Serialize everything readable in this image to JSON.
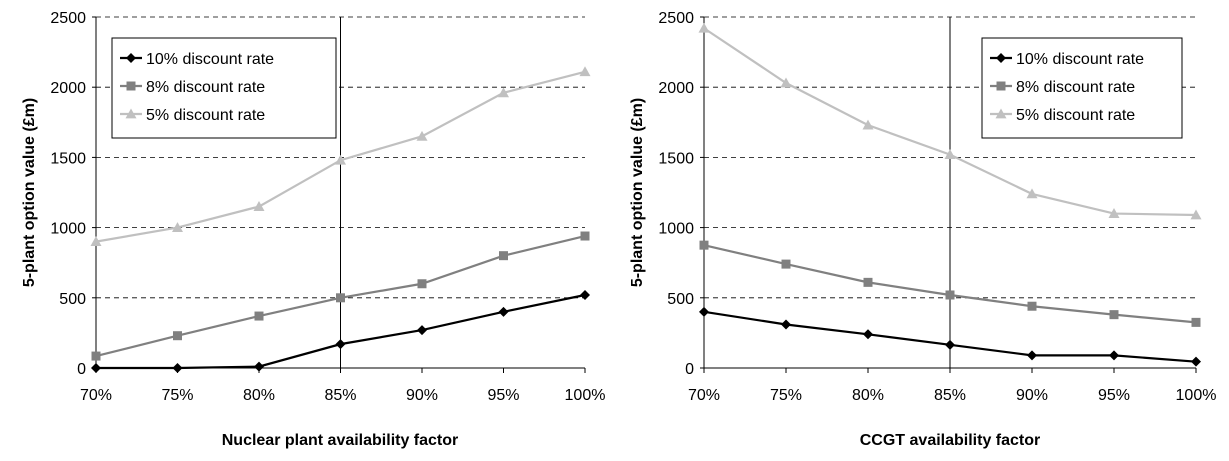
{
  "chart_data": [
    {
      "type": "line",
      "title": "",
      "xlabel": "Nuclear plant availability factor",
      "ylabel": "5-plant option value (£m)",
      "categories": [
        "70%",
        "75%",
        "80%",
        "85%",
        "90%",
        "95%",
        "100%"
      ],
      "ylim": [
        0,
        2500
      ],
      "yticks": [
        "0",
        "500",
        "1000",
        "1500",
        "2000",
        "2500"
      ],
      "grid": "horizontal dashed",
      "legend_position": "top-left",
      "series": [
        {
          "name": "10% discount rate",
          "marker": "diamond",
          "color": "#000000",
          "values": [
            0,
            0,
            10,
            170,
            270,
            400,
            520
          ]
        },
        {
          "name": "8% discount rate",
          "marker": "square",
          "color": "#808080",
          "values": [
            85,
            230,
            370,
            500,
            600,
            800,
            940
          ]
        },
        {
          "name": "5% discount rate",
          "marker": "triangle",
          "color": "#c0c0c0",
          "values": [
            900,
            1000,
            1150,
            1480,
            1650,
            1960,
            2110
          ]
        }
      ]
    },
    {
      "type": "line",
      "title": "",
      "xlabel": "CCGT availability factor",
      "ylabel": "5-plant option value (£m)",
      "categories": [
        "70%",
        "75%",
        "80%",
        "85%",
        "90%",
        "95%",
        "100%"
      ],
      "ylim": [
        0,
        2500
      ],
      "yticks": [
        "0",
        "500",
        "1000",
        "1500",
        "2000",
        "2500"
      ],
      "grid": "horizontal dashed",
      "legend_position": "top-right",
      "series": [
        {
          "name": "10% discount rate",
          "marker": "diamond",
          "color": "#000000",
          "values": [
            400,
            310,
            240,
            165,
            90,
            90,
            45
          ]
        },
        {
          "name": "8% discount rate",
          "marker": "square",
          "color": "#808080",
          "values": [
            875,
            740,
            610,
            520,
            440,
            380,
            325
          ]
        },
        {
          "name": "5% discount rate",
          "marker": "triangle",
          "color": "#c0c0c0",
          "values": [
            2420,
            2030,
            1730,
            1520,
            1240,
            1100,
            1090
          ]
        }
      ]
    }
  ]
}
